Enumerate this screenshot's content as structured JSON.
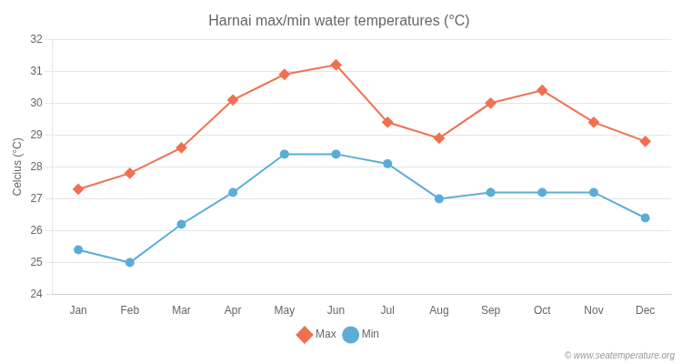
{
  "chart_data": {
    "type": "line",
    "title": "Harnai max/min water temperatures (°C)",
    "ylabel": "Celcius (°C)",
    "categories": [
      "Jan",
      "Feb",
      "Mar",
      "Apr",
      "May",
      "Jun",
      "Jul",
      "Aug",
      "Sep",
      "Oct",
      "Nov",
      "Dec"
    ],
    "series": [
      {
        "name": "Max",
        "color": "#f07050",
        "marker": "diamond",
        "values": [
          27.3,
          27.8,
          28.6,
          30.1,
          30.9,
          31.2,
          29.4,
          28.9,
          30.0,
          30.4,
          29.4,
          28.8
        ]
      },
      {
        "name": "Min",
        "color": "#5badd6",
        "marker": "circle",
        "values": [
          25.4,
          25.0,
          26.2,
          27.2,
          28.4,
          28.4,
          28.1,
          27.0,
          27.2,
          27.2,
          27.2,
          26.4
        ]
      }
    ],
    "ylim": [
      24,
      32
    ],
    "yticks": [
      24,
      25,
      26,
      27,
      28,
      29,
      30,
      31,
      32
    ],
    "grid": true,
    "legend": "bottom",
    "annotations": [
      "© www.seatemperature.org"
    ]
  }
}
